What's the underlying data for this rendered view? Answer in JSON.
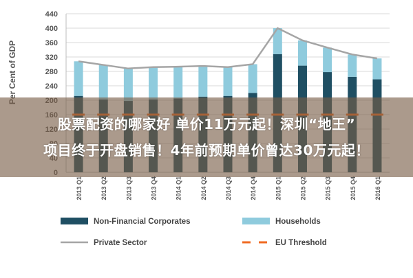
{
  "chart_data": {
    "type": "bar",
    "ylabel": "Per Cent of GDP",
    "ylim": [
      0,
      440
    ],
    "yticks": [
      "0",
      "40",
      "80",
      "120",
      "160",
      "200",
      "240",
      "280",
      "320",
      "360",
      "400",
      "440"
    ],
    "grid": true,
    "categories": [
      "2013 Q1",
      "2013 Q2",
      "2013 Q3",
      "2013 Q4",
      "2014 Q1",
      "2014 Q2",
      "2014 Q3",
      "2014 Q4",
      "2015 Q1",
      "2015 Q2",
      "2015 Q3",
      "2015 Q4",
      "2016 Q1"
    ],
    "series": [
      {
        "name": "Non-Financial Corporates",
        "kind": "bar",
        "stack": true,
        "color": "#1f4f63",
        "values": [
          212,
          202,
          198,
          202,
          205,
          210,
          212,
          220,
          328,
          296,
          278,
          265,
          258
        ]
      },
      {
        "name": "Households",
        "kind": "bar",
        "stack": true,
        "color": "#8fcbdd",
        "values": [
          96,
          96,
          90,
          90,
          88,
          85,
          80,
          80,
          72,
          70,
          68,
          62,
          58
        ]
      },
      {
        "name": "Private Sector",
        "kind": "line",
        "color": "#a5a5a5",
        "values": [
          308,
          298,
          288,
          292,
          293,
          295,
          292,
          300,
          400,
          366,
          346,
          327,
          316
        ]
      },
      {
        "name": "EU Threshold",
        "kind": "dashed",
        "color": "#f06a21",
        "values": [
          160,
          160,
          160,
          160,
          160,
          160,
          160,
          160,
          160,
          160,
          160,
          160,
          160
        ]
      }
    ],
    "legend": "bottom"
  },
  "overlay": {
    "line1": "股票配资的哪家好 单价11万元起！深圳“地王”",
    "line2": "项目终于开盘销售！4年前预期单价曾达30万元起！"
  }
}
